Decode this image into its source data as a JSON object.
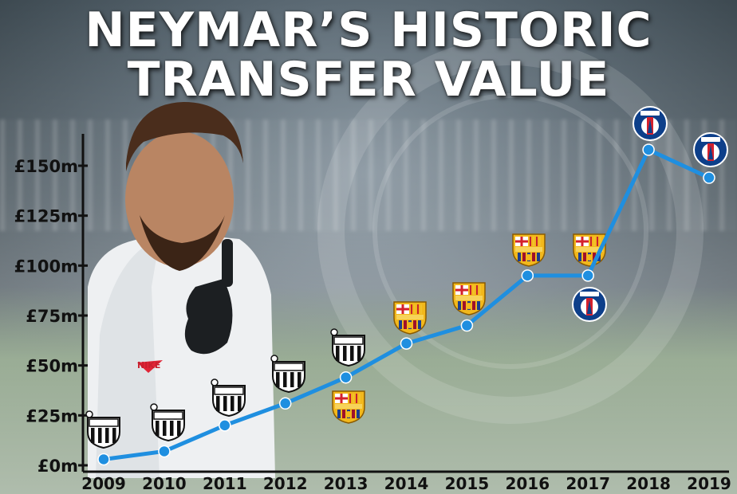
{
  "title_line1": "NEYMAR’S HISTORIC",
  "title_line2": "TRANSFER VALUE",
  "colors": {
    "line": "#1f8fe0",
    "marker": "#1f8fe0",
    "axis": "#111111"
  },
  "chart_data": {
    "type": "line",
    "title": "NEYMAR’S HISTORIC TRANSFER VALUE",
    "xlabel": "",
    "ylabel": "",
    "categories": [
      "2009",
      "2010",
      "2011",
      "2012",
      "2013",
      "2014",
      "2015",
      "2016",
      "2017",
      "2018",
      "2019"
    ],
    "values": [
      3,
      7,
      20,
      31,
      44,
      61,
      70,
      95,
      95,
      158,
      144
    ],
    "yticks": [
      "£0m",
      "£25m",
      "£50m",
      "£75m",
      "£100m",
      "£125m",
      "£150m"
    ],
    "ytick_values": [
      0,
      25,
      50,
      75,
      100,
      125,
      150
    ],
    "ylim": [
      0,
      165
    ],
    "grid": false,
    "club_badges": [
      {
        "year": "2009",
        "clubs": [
          "santos-badge-icon"
        ]
      },
      {
        "year": "2010",
        "clubs": [
          "santos-badge-icon"
        ]
      },
      {
        "year": "2011",
        "clubs": [
          "santos-badge-icon"
        ]
      },
      {
        "year": "2012",
        "clubs": [
          "santos-badge-icon"
        ]
      },
      {
        "year": "2013",
        "clubs": [
          "santos-badge-icon",
          "barcelona-badge-icon"
        ]
      },
      {
        "year": "2014",
        "clubs": [
          "barcelona-badge-icon"
        ]
      },
      {
        "year": "2015",
        "clubs": [
          "barcelona-badge-icon"
        ]
      },
      {
        "year": "2016",
        "clubs": [
          "barcelona-badge-icon"
        ]
      },
      {
        "year": "2017",
        "clubs": [
          "barcelona-badge-icon",
          "psg-badge-icon"
        ]
      },
      {
        "year": "2018",
        "clubs": [
          "psg-badge-icon"
        ]
      },
      {
        "year": "2019",
        "clubs": [
          "psg-badge-icon"
        ]
      }
    ]
  }
}
